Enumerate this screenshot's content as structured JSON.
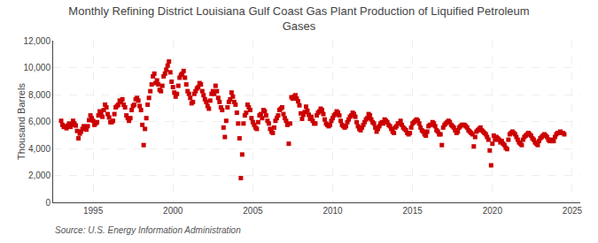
{
  "chart_data": {
    "type": "scatter",
    "title": "Monthly Refining District Louisiana Gulf Coast Gas Plant Production of Liquified Petroleum\nGases",
    "ylabel": "Thousand Barrels",
    "annotations": [
      "Source: U.S. Energy Information Administration"
    ],
    "color": "#cc0000",
    "marker": "square",
    "grid": true,
    "xlim": [
      1992.5,
      2025.5
    ],
    "xticks": [
      1995,
      2000,
      2005,
      2010,
      2015,
      2020,
      2025
    ],
    "ylim": [
      0,
      12000
    ],
    "yticks": [
      0,
      {
        "value": 2000,
        "label": "2,000"
      },
      {
        "value": 4000,
        "label": "4,000"
      },
      {
        "value": 6000,
        "label": "6,000"
      },
      {
        "value": 8000,
        "label": "8,000"
      },
      {
        "value": 10000,
        "label": "10,000"
      },
      {
        "value": 12000,
        "label": "12,000"
      }
    ],
    "x": [
      1993,
      1993.0833333333333,
      1993.1666666666667,
      1993.25,
      1993.3333333333333,
      1993.4166666666667,
      1993.5,
      1993.5833333333333,
      1993.6666666666667,
      1993.75,
      1993.8333333333333,
      1993.9166666666667,
      1994,
      1994.0833333333333,
      1994.1666666666667,
      1994.25,
      1994.3333333333333,
      1994.4166666666667,
      1994.5,
      1994.5833333333333,
      1994.6666666666667,
      1994.75,
      1994.8333333333333,
      1994.9166666666667,
      1995,
      1995.0833333333333,
      1995.1666666666667,
      1995.25,
      1995.3333333333333,
      1995.4166666666667,
      1995.5,
      1995.5833333333333,
      1995.6666666666667,
      1995.75,
      1995.8333333333333,
      1995.9166666666667,
      1996,
      1996.0833333333333,
      1996.1666666666667,
      1996.25,
      1996.3333333333333,
      1996.4166666666667,
      1996.5,
      1996.5833333333333,
      1996.6666666666667,
      1996.75,
      1996.8333333333333,
      1996.9166666666667,
      1997,
      1997.0833333333333,
      1997.1666666666667,
      1997.25,
      1997.3333333333333,
      1997.4166666666667,
      1997.5,
      1997.5833333333333,
      1997.6666666666667,
      1997.75,
      1997.8333333333333,
      1997.9166666666667,
      1998,
      1998.0833333333333,
      1998.1666666666667,
      1998.25,
      1998.3333333333333,
      1998.4166666666667,
      1998.5,
      1998.5833333333333,
      1998.6666666666667,
      1998.75,
      1998.8333333333333,
      1998.9166666666667,
      1999,
      1999.0833333333333,
      1999.1666666666667,
      1999.25,
      1999.3333333333333,
      1999.4166666666667,
      1999.5,
      1999.5833333333333,
      1999.6666666666667,
      1999.75,
      1999.8333333333333,
      1999.9166666666667,
      2000,
      2000.0833333333333,
      2000.1666666666667,
      2000.25,
      2000.3333333333333,
      2000.4166666666667,
      2000.5,
      2000.5833333333333,
      2000.6666666666667,
      2000.75,
      2000.8333333333333,
      2000.9166666666667,
      2001,
      2001.0833333333333,
      2001.1666666666667,
      2001.25,
      2001.3333333333333,
      2001.4166666666667,
      2001.5,
      2001.5833333333333,
      2001.6666666666667,
      2001.75,
      2001.8333333333333,
      2001.9166666666667,
      2002,
      2002.0833333333333,
      2002.1666666666667,
      2002.25,
      2002.3333333333333,
      2002.4166666666667,
      2002.5,
      2002.5833333333333,
      2002.6666666666667,
      2002.75,
      2002.8333333333333,
      2002.9166666666667,
      2003,
      2003.0833333333333,
      2003.1666666666667,
      2003.25,
      2003.3333333333333,
      2003.4166666666667,
      2003.5,
      2003.5833333333333,
      2003.6666666666667,
      2003.75,
      2003.8333333333333,
      2003.9166666666667,
      2004,
      2004.0833333333333,
      2004.1666666666667,
      2004.25,
      2004.3333333333333,
      2004.4166666666667,
      2004.5,
      2004.5833333333333,
      2004.6666666666667,
      2004.75,
      2004.8333333333333,
      2004.9166666666667,
      2005,
      2005.0833333333333,
      2005.1666666666667,
      2005.25,
      2005.3333333333333,
      2005.4166666666667,
      2005.5,
      2005.5833333333333,
      2005.6666666666667,
      2005.75,
      2005.8333333333333,
      2005.9166666666667,
      2006,
      2006.0833333333333,
      2006.1666666666667,
      2006.25,
      2006.3333333333333,
      2006.4166666666667,
      2006.5,
      2006.5833333333333,
      2006.6666666666667,
      2006.75,
      2006.8333333333333,
      2006.9166666666667,
      2007,
      2007.0833333333333,
      2007.1666666666667,
      2007.25,
      2007.3333333333333,
      2007.4166666666667,
      2007.5,
      2007.5833333333333,
      2007.6666666666667,
      2007.75,
      2007.8333333333333,
      2007.9166666666667,
      2008,
      2008.0833333333333,
      2008.1666666666667,
      2008.25,
      2008.3333333333333,
      2008.4166666666667,
      2008.5,
      2008.5833333333333,
      2008.6666666666667,
      2008.75,
      2008.8333333333333,
      2008.9166666666667,
      2009,
      2009.0833333333333,
      2009.1666666666667,
      2009.25,
      2009.3333333333333,
      2009.4166666666667,
      2009.5,
      2009.5833333333333,
      2009.6666666666667,
      2009.75,
      2009.8333333333333,
      2009.9166666666667,
      2010,
      2010.0833333333333,
      2010.1666666666667,
      2010.25,
      2010.3333333333333,
      2010.4166666666667,
      2010.5,
      2010.5833333333333,
      2010.6666666666667,
      2010.75,
      2010.8333333333333,
      2010.9166666666667,
      2011,
      2011.0833333333333,
      2011.1666666666667,
      2011.25,
      2011.3333333333333,
      2011.4166666666667,
      2011.5,
      2011.5833333333333,
      2011.6666666666667,
      2011.75,
      2011.8333333333333,
      2011.9166666666667,
      2012,
      2012.0833333333333,
      2012.1666666666667,
      2012.25,
      2012.3333333333333,
      2012.4166666666667,
      2012.5,
      2012.5833333333333,
      2012.6666666666667,
      2012.75,
      2012.8333333333333,
      2012.9166666666667,
      2013,
      2013.0833333333333,
      2013.1666666666667,
      2013.25,
      2013.3333333333333,
      2013.4166666666667,
      2013.5,
      2013.5833333333333,
      2013.6666666666667,
      2013.75,
      2013.8333333333333,
      2013.9166666666667,
      2014,
      2014.0833333333333,
      2014.1666666666667,
      2014.25,
      2014.3333333333333,
      2014.4166666666667,
      2014.5,
      2014.5833333333333,
      2014.6666666666667,
      2014.75,
      2014.8333333333333,
      2014.9166666666667,
      2015,
      2015.0833333333333,
      2015.1666666666667,
      2015.25,
      2015.3333333333333,
      2015.4166666666667,
      2015.5,
      2015.5833333333333,
      2015.6666666666667,
      2015.75,
      2015.8333333333333,
      2015.9166666666667,
      2016,
      2016.0833333333333,
      2016.1666666666667,
      2016.25,
      2016.3333333333333,
      2016.4166666666667,
      2016.5,
      2016.5833333333333,
      2016.6666666666667,
      2016.75,
      2016.8333333333333,
      2016.9166666666667,
      2017,
      2017.0833333333333,
      2017.1666666666667,
      2017.25,
      2017.3333333333333,
      2017.4166666666667,
      2017.5,
      2017.5833333333333,
      2017.6666666666667,
      2017.75,
      2017.8333333333333,
      2017.9166666666667,
      2018,
      2018.0833333333333,
      2018.1666666666667,
      2018.25,
      2018.3333333333333,
      2018.4166666666667,
      2018.5,
      2018.5833333333333,
      2018.6666666666667,
      2018.75,
      2018.8333333333333,
      2018.9166666666667,
      2019,
      2019.0833333333333,
      2019.1666666666667,
      2019.25,
      2019.3333333333333,
      2019.4166666666667,
      2019.5,
      2019.5833333333333,
      2019.6666666666667,
      2019.75,
      2019.8333333333333,
      2019.9166666666667,
      2020,
      2020.0833333333333,
      2020.1666666666667,
      2020.25,
      2020.3333333333333,
      2020.4166666666667,
      2020.5,
      2020.5833333333333,
      2020.6666666666667,
      2020.75,
      2020.8333333333333,
      2020.9166666666667,
      2021,
      2021.0833333333333,
      2021.1666666666667,
      2021.25,
      2021.3333333333333,
      2021.4166666666667,
      2021.5,
      2021.5833333333333,
      2021.6666666666667,
      2021.75,
      2021.8333333333333,
      2021.9166666666667,
      2022,
      2022.0833333333333,
      2022.1666666666667,
      2022.25,
      2022.3333333333333,
      2022.4166666666667,
      2022.5,
      2022.5833333333333,
      2022.6666666666667,
      2022.75,
      2022.8333333333333,
      2022.9166666666667,
      2023,
      2023.0833333333333,
      2023.1666666666667,
      2023.25,
      2023.3333333333333,
      2023.4166666666667,
      2023.5,
      2023.5833333333333,
      2023.6666666666667,
      2023.75,
      2023.8333333333333,
      2023.9166666666667,
      2024,
      2024.0833333333333,
      2024.1666666666667,
      2024.25,
      2024.3333333333333,
      2024.4166666666667,
      2024.5
    ],
    "values": [
      6050,
      5750,
      5600,
      5650,
      5500,
      5700,
      5850,
      5600,
      5750,
      6050,
      5850,
      5700,
      5300,
      4750,
      5100,
      5250,
      5450,
      5650,
      5550,
      5400,
      5650,
      6100,
      6450,
      6250,
      6050,
      5750,
      5850,
      5950,
      6450,
      6750,
      6550,
      6350,
      6850,
      7250,
      7050,
      6550,
      6300,
      5950,
      5950,
      6050,
      6550,
      7050,
      7150,
      7250,
      7550,
      7450,
      7650,
      7250,
      7050,
      6450,
      6250,
      6050,
      6250,
      6850,
      7150,
      7250,
      7650,
      7750,
      7550,
      7150,
      6850,
      5750,
      4250,
      5450,
      6250,
      7250,
      7750,
      8250,
      8750,
      9350,
      9550,
      8850,
      9050,
      8750,
      8350,
      8250,
      8650,
      9350,
      9550,
      9850,
      10150,
      10450,
      9650,
      8950,
      8550,
      8150,
      7850,
      8050,
      8650,
      9250,
      9450,
      9550,
      9750,
      9250,
      8750,
      8250,
      8050,
      7750,
      7350,
      7450,
      8050,
      8250,
      8450,
      8550,
      8850,
      8750,
      8250,
      7950,
      7650,
      7450,
      7150,
      6950,
      7550,
      8050,
      8250,
      8050,
      8650,
      8250,
      7750,
      7450,
      7050,
      6850,
      5550,
      4850,
      6050,
      7050,
      7450,
      7650,
      8150,
      7850,
      7450,
      7250,
      6650,
      5850,
      4750,
      1800,
      3550,
      5850,
      6450,
      6650,
      7250,
      7050,
      6850,
      6250,
      5950,
      5750,
      5550,
      5450,
      5950,
      6450,
      6550,
      6250,
      6850,
      6750,
      6450,
      6050,
      5850,
      5450,
      5250,
      5150,
      5550,
      6050,
      6250,
      6450,
      6850,
      6950,
      7050,
      6550,
      6250,
      6050,
      5750,
      4350,
      5850,
      7800,
      7700,
      7850,
      7950,
      7700,
      7500,
      7200,
      6600,
      6200,
      6500,
      6700,
      7100,
      6800,
      6500,
      6200,
      6350,
      6050,
      5850,
      5850,
      6450,
      6650,
      6750,
      6950,
      6850,
      6550,
      6150,
      5850,
      5750,
      5650,
      5750,
      6050,
      6250,
      6450,
      6550,
      6750,
      6650,
      6450,
      6050,
      5750,
      5650,
      5550,
      5650,
      5950,
      6150,
      6350,
      6450,
      6650,
      6550,
      6350,
      5950,
      5650,
      5450,
      5350,
      5550,
      5750,
      5950,
      6150,
      6250,
      6550,
      6450,
      6150,
      5950,
      5850,
      5550,
      5250,
      5450,
      5650,
      5850,
      5950,
      5850,
      6150,
      6050,
      5950,
      5750,
      5650,
      5450,
      5250,
      5150,
      5550,
      5650,
      5850,
      5850,
      6050,
      5750,
      5550,
      5450,
      5350,
      5150,
      5050,
      5150,
      5550,
      5850,
      5950,
      6050,
      6150,
      6050,
      5850,
      5550,
      5350,
      5250,
      5050,
      4950,
      5250,
      5650,
      5750,
      5750,
      5950,
      5850,
      5650,
      5350,
      5250,
      5050,
      5050,
      4250,
      5550,
      5750,
      5850,
      5950,
      6050,
      5950,
      5750,
      5650,
      5550,
      5350,
      5150,
      5250,
      5550,
      5650,
      5750,
      5750,
      5750,
      5650,
      5550,
      5350,
      5250,
      5150,
      5050,
      4150,
      4850,
      5250,
      5350,
      5450,
      5550,
      5350,
      5250,
      5150,
      5050,
      4850,
      4650,
      3850,
      2750,
      4350,
      4950,
      4650,
      4850,
      4750,
      4650,
      4450,
      4550,
      4350,
      4250,
      4050,
      3950,
      4650,
      5050,
      5150,
      5250,
      5150,
      5050,
      4850,
      4650,
      4450,
      4350,
      4250,
      4650,
      4850,
      4950,
      5050,
      5150,
      5050,
      4950,
      4750,
      4650,
      4450,
      4350,
      4250,
      4550,
      4750,
      4850,
      4950,
      5050,
      4950,
      4850,
      4650,
      4550,
      4650,
      4550,
      4550,
      4850,
      5050,
      5150,
      5150,
      5250,
      5150,
      5150,
      5050
    ]
  }
}
